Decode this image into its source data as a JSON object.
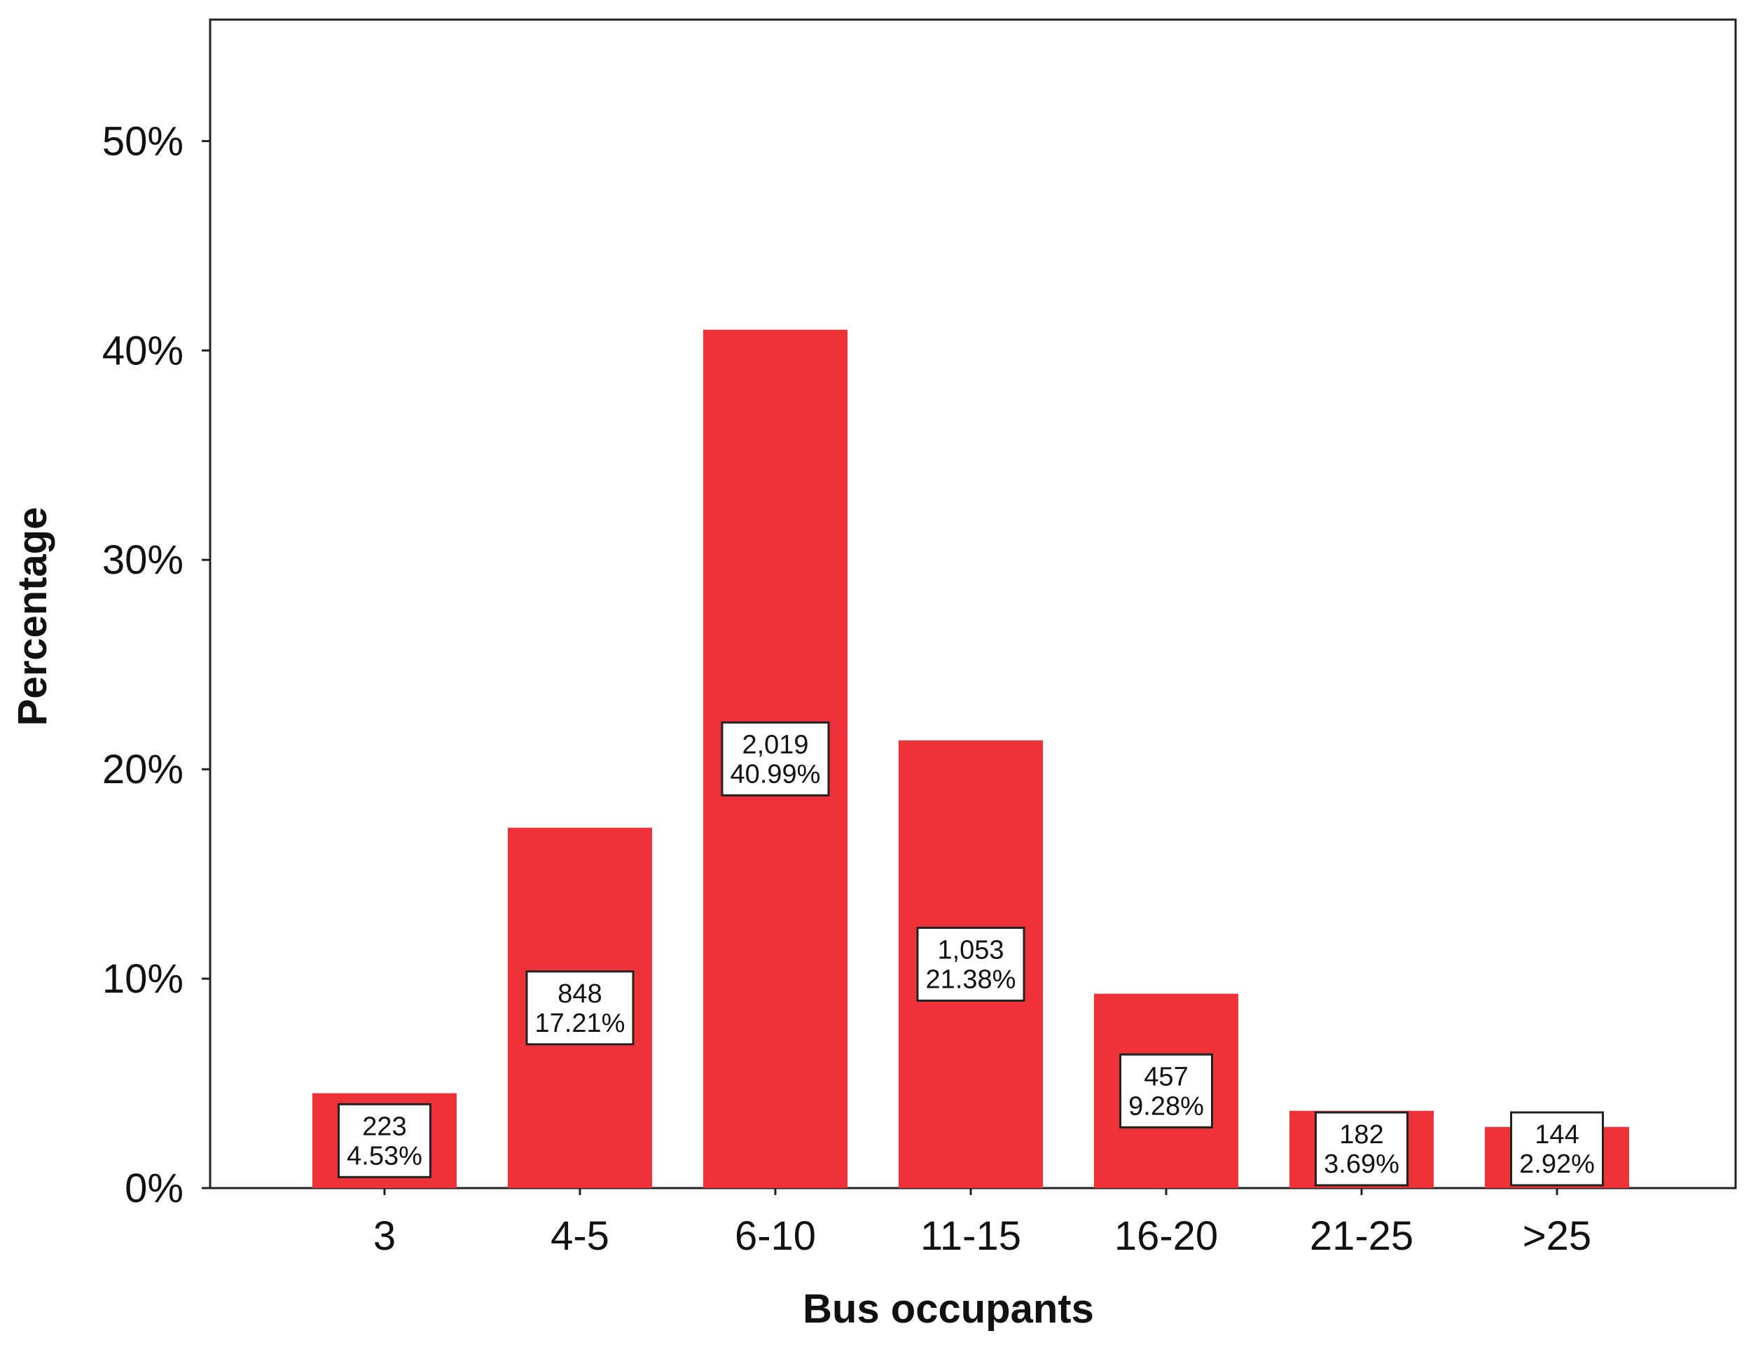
{
  "chart_data": {
    "type": "bar",
    "xlabel": "Bus occupants",
    "ylabel": "Percentage",
    "categories": [
      "3",
      "4-5",
      "6-10",
      "11-15",
      "16-20",
      "21-25",
      ">25"
    ],
    "values": [
      4.53,
      17.21,
      40.99,
      21.38,
      9.28,
      3.69,
      2.92
    ],
    "counts": [
      "223",
      "848",
      "2,019",
      "1,053",
      "457",
      "182",
      "144"
    ],
    "value_labels": [
      "4.53%",
      "17.21%",
      "40.99%",
      "21.38%",
      "9.28%",
      "3.69%",
      "2.92%"
    ],
    "yticks": [
      "0%",
      "10%",
      "20%",
      "30%",
      "40%",
      "50%"
    ],
    "ytick_values": [
      0,
      10,
      20,
      30,
      40,
      50
    ],
    "ylim": [
      0,
      55.8
    ],
    "grid": false,
    "colors": {
      "bar": "#EE3338",
      "frame": "#222222",
      "label_box": "#ffffff"
    }
  }
}
